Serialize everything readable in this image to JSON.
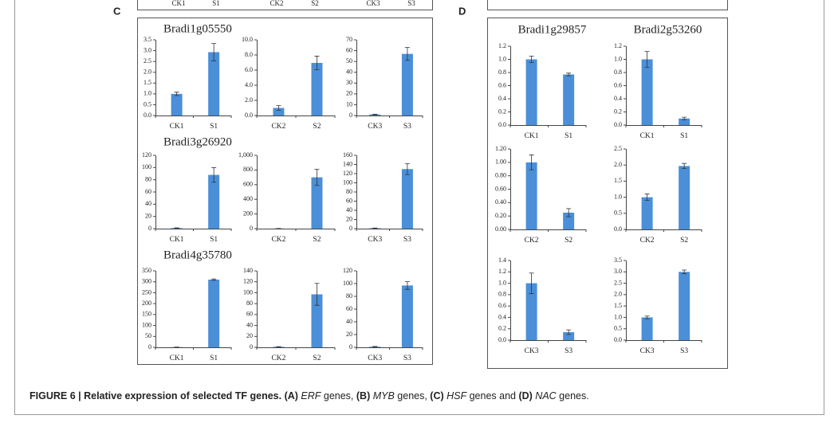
{
  "panels": [
    "C",
    "D"
  ],
  "top_labels": [
    "CK1",
    "S1",
    "CK2",
    "S2",
    "CK3",
    "S3"
  ],
  "caption": [
    {
      "text": "FIGURE 6 | Relative expression of selected TF genes. (A) ",
      "bold": true
    },
    {
      "text": "ERF",
      "italic": true
    },
    {
      "text": " genes, "
    },
    {
      "text": "(B) ",
      "bold": true
    },
    {
      "text": "MYB",
      "italic": true
    },
    {
      "text": " genes, "
    },
    {
      "text": "(C) ",
      "bold": true
    },
    {
      "text": "HSF",
      "italic": true
    },
    {
      "text": " genes and "
    },
    {
      "text": "(D) ",
      "bold": true
    },
    {
      "text": "NAC",
      "italic": true
    },
    {
      "text": " genes."
    }
  ],
  "chart_data": [
    {
      "type": "bar",
      "title": "Bradi1g05550",
      "categories": [
        "CK1",
        "S1"
      ],
      "values": [
        1.0,
        2.93
      ],
      "errors": [
        0.08,
        0.4
      ],
      "color": "#4a8fd8",
      "ylim": [
        0,
        3.5
      ],
      "yticks": [
        {
          "value": 0,
          "label": "0.0"
        },
        0.5,
        {
          "value": 1,
          "label": "1.0"
        },
        1.5,
        {
          "value": 2,
          "label": "2.0"
        },
        2.5,
        {
          "value": 3,
          "label": "3.0"
        },
        3.5
      ]
    },
    {
      "type": "bar",
      "categories": [
        "CK2",
        "S2"
      ],
      "values": [
        1.0,
        6.95
      ],
      "errors": [
        0.3,
        0.9
      ],
      "color": "#4a8fd8",
      "ylim": [
        0,
        10
      ],
      "yticks": [
        {
          "value": 0,
          "label": "0.0"
        },
        {
          "value": 2,
          "label": "2.0"
        },
        {
          "value": 4,
          "label": "4.0"
        },
        {
          "value": 6,
          "label": "6.0"
        },
        {
          "value": 8,
          "label": "8.0"
        },
        {
          "value": 10,
          "label": "10.0"
        }
      ]
    },
    {
      "type": "bar",
      "categories": [
        "CK3",
        "S3"
      ],
      "values": [
        1,
        57
      ],
      "errors": [
        0.2,
        6
      ],
      "color": "#4a8fd8",
      "ylim": [
        0,
        70
      ],
      "yticks": [
        0,
        10,
        20,
        30,
        40,
        50,
        60,
        70
      ]
    },
    {
      "type": "bar",
      "title": "Bradi3g26920",
      "categories": [
        "CK1",
        "S1"
      ],
      "values": [
        1,
        88
      ],
      "errors": [
        0.3,
        12
      ],
      "color": "#4a8fd8",
      "ylim": [
        0,
        120
      ],
      "yticks": [
        0,
        20,
        40,
        60,
        80,
        100,
        120
      ]
    },
    {
      "type": "bar",
      "categories": [
        "CK2",
        "S2"
      ],
      "values": [
        2,
        700
      ],
      "errors": [
        0.5,
        110
      ],
      "color": "#4a8fd8",
      "ylim": [
        0,
        1000
      ],
      "yticks": [
        0,
        200,
        400,
        600,
        800,
        {
          "value": 1000,
          "label": "1,000"
        }
      ]
    },
    {
      "type": "bar",
      "categories": [
        "CK3",
        "S3"
      ],
      "values": [
        1,
        130
      ],
      "errors": [
        0.3,
        12
      ],
      "color": "#4a8fd8",
      "ylim": [
        0,
        160
      ],
      "yticks": [
        0,
        20,
        40,
        60,
        80,
        100,
        120,
        140,
        160
      ]
    },
    {
      "type": "bar",
      "title": "Bradi4g35780",
      "categories": [
        "CK1",
        "S1"
      ],
      "values": [
        1,
        310
      ],
      "errors": [
        0.3,
        3
      ],
      "color": "#4a8fd8",
      "ylim": [
        0,
        350
      ],
      "yticks": [
        0,
        50,
        100,
        150,
        200,
        250,
        300,
        350
      ]
    },
    {
      "type": "bar",
      "categories": [
        "CK2",
        "S2"
      ],
      "values": [
        1,
        97
      ],
      "errors": [
        0.3,
        20
      ],
      "color": "#4a8fd8",
      "ylim": [
        0,
        140
      ],
      "yticks": [
        0,
        20,
        40,
        60,
        80,
        100,
        120,
        140
      ]
    },
    {
      "type": "bar",
      "categories": [
        "CK3",
        "S3"
      ],
      "values": [
        1,
        97
      ],
      "errors": [
        0.3,
        6
      ],
      "color": "#4a8fd8",
      "ylim": [
        0,
        120
      ],
      "yticks": [
        0,
        20,
        40,
        60,
        80,
        100,
        120
      ]
    },
    {
      "type": "bar",
      "title": "Bradi1g29857",
      "categories": [
        "CK1",
        "S1"
      ],
      "values": [
        1.0,
        0.77
      ],
      "errors": [
        0.05,
        0.02
      ],
      "color": "#4a8fd8",
      "ylim": [
        0,
        1.2
      ],
      "yticks": [
        {
          "value": 0,
          "label": "0.0"
        },
        0.2,
        0.4,
        0.6,
        0.8,
        {
          "value": 1,
          "label": "1.0"
        },
        1.2
      ]
    },
    {
      "type": "bar",
      "title": "Bradi2g53260",
      "categories": [
        "CK1",
        "S1"
      ],
      "values": [
        1.0,
        0.1
      ],
      "errors": [
        0.12,
        0.02
      ],
      "color": "#4a8fd8",
      "ylim": [
        0,
        1.2
      ],
      "yticks": [
        {
          "value": 0,
          "label": "0.0"
        },
        0.2,
        0.4,
        0.6,
        0.8,
        {
          "value": 1,
          "label": "1.0"
        },
        1.2
      ]
    },
    {
      "type": "bar",
      "categories": [
        "CK2",
        "S2"
      ],
      "values": [
        1.0,
        0.25
      ],
      "errors": [
        0.11,
        0.06
      ],
      "color": "#4a8fd8",
      "ylim": [
        0,
        1.2
      ],
      "yticks": [
        {
          "value": 0,
          "label": "0.00"
        },
        {
          "value": 0.2,
          "label": "0.20"
        },
        {
          "value": 0.4,
          "label": "0.40"
        },
        {
          "value": 0.6,
          "label": "0.60"
        },
        {
          "value": 0.8,
          "label": "0.80"
        },
        {
          "value": 1,
          "label": "1.00"
        },
        {
          "value": 1.2,
          "label": "1.20"
        }
      ]
    },
    {
      "type": "bar",
      "categories": [
        "CK2",
        "S2"
      ],
      "values": [
        1.0,
        1.97
      ],
      "errors": [
        0.1,
        0.08
      ],
      "color": "#4a8fd8",
      "ylim": [
        0,
        2.5
      ],
      "yticks": [
        {
          "value": 0,
          "label": "0.0"
        },
        0.5,
        {
          "value": 1,
          "label": "1.0"
        },
        1.5,
        {
          "value": 2,
          "label": "2.0"
        },
        2.5
      ]
    },
    {
      "type": "bar",
      "categories": [
        "CK3",
        "S3"
      ],
      "values": [
        1.0,
        0.14
      ],
      "errors": [
        0.18,
        0.04
      ],
      "color": "#4a8fd8",
      "ylim": [
        0,
        1.4
      ],
      "yticks": [
        {
          "value": 0,
          "label": "0.0"
        },
        0.2,
        0.4,
        0.6,
        0.8,
        {
          "value": 1,
          "label": "1.0"
        },
        1.2,
        1.4
      ]
    },
    {
      "type": "bar",
      "categories": [
        "CK3",
        "S3"
      ],
      "values": [
        1.0,
        3.0
      ],
      "errors": [
        0.06,
        0.08
      ],
      "color": "#4a8fd8",
      "ylim": [
        0,
        3.5
      ],
      "yticks": [
        {
          "value": 0,
          "label": "0.0"
        },
        0.5,
        {
          "value": 1,
          "label": "1.0"
        },
        1.5,
        {
          "value": 2,
          "label": "2.0"
        },
        2.5,
        {
          "value": 3,
          "label": "3.0"
        },
        3.5
      ]
    }
  ]
}
